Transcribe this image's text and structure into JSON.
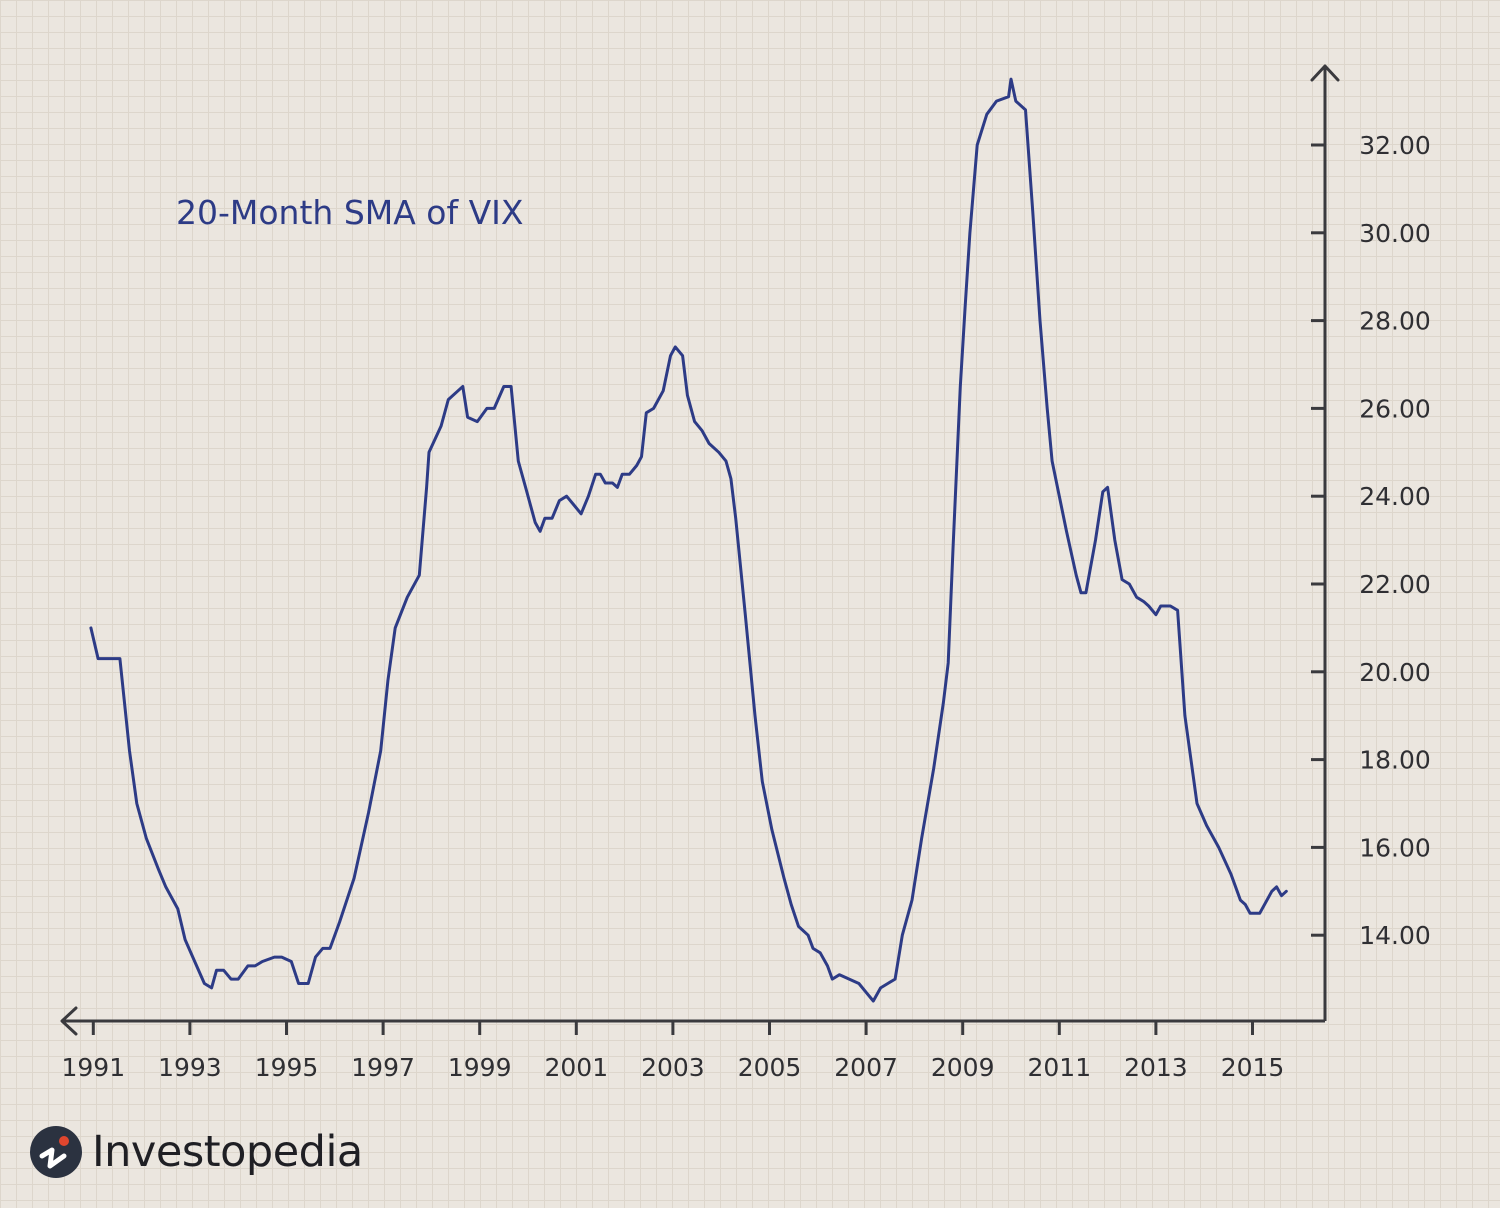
{
  "brand": {
    "name": "Investopedia"
  },
  "colors": {
    "line": "#2d3b86",
    "axis": "#3a3a3e",
    "background": "#ebe6df",
    "logo_accent": "#e0462e"
  },
  "chart_data": {
    "type": "line",
    "title": "20-Month SMA of VIX",
    "xlabel": "",
    "ylabel": "",
    "xlim": [
      1990.0,
      2015.5
    ],
    "ylim": [
      12.0,
      33.8
    ],
    "y_axis_position": "right",
    "grid": true,
    "x_ticks": [
      1991,
      1993,
      1995,
      1997,
      1999,
      2001,
      2003,
      2005,
      2007,
      2009,
      2011,
      2013,
      2015
    ],
    "x_tick_labels": [
      "1991",
      "1993",
      "1995",
      "1997",
      "1999",
      "2001",
      "2003",
      "2005",
      "2007",
      "2009",
      "2011",
      "2013",
      "2015"
    ],
    "y_ticks": [
      14,
      16,
      18,
      20,
      22,
      24,
      26,
      28,
      30,
      32
    ],
    "y_tick_labels": [
      "14.00",
      "16.00",
      "18.00",
      "20.00",
      "22.00",
      "24.00",
      "26.00",
      "28.00",
      "30.00",
      "32.00"
    ],
    "series": [
      {
        "values": [
          [
            1990.95,
            21.0
          ],
          [
            1991.1,
            20.3
          ],
          [
            1991.55,
            20.3
          ],
          [
            1991.75,
            18.2
          ],
          [
            1991.9,
            17.0
          ],
          [
            1992.1,
            16.2
          ],
          [
            1992.35,
            15.5
          ],
          [
            1992.5,
            15.1
          ],
          [
            1992.75,
            14.6
          ],
          [
            1992.9,
            13.9
          ],
          [
            1993.1,
            13.4
          ],
          [
            1993.3,
            12.9
          ],
          [
            1993.45,
            12.8
          ],
          [
            1993.55,
            13.2
          ],
          [
            1993.7,
            13.2
          ],
          [
            1993.85,
            13.0
          ],
          [
            1994.0,
            13.0
          ],
          [
            1994.2,
            13.3
          ],
          [
            1994.35,
            13.3
          ],
          [
            1994.5,
            13.4
          ],
          [
            1994.75,
            13.5
          ],
          [
            1994.9,
            13.5
          ],
          [
            1995.1,
            13.4
          ],
          [
            1995.25,
            12.9
          ],
          [
            1995.45,
            12.9
          ],
          [
            1995.6,
            13.5
          ],
          [
            1995.75,
            13.7
          ],
          [
            1995.9,
            13.7
          ],
          [
            1996.1,
            14.3
          ],
          [
            1996.4,
            15.3
          ],
          [
            1996.7,
            16.8
          ],
          [
            1996.95,
            18.2
          ],
          [
            1997.1,
            19.8
          ],
          [
            1997.25,
            21.0
          ],
          [
            1997.5,
            21.7
          ],
          [
            1997.75,
            22.2
          ],
          [
            1997.9,
            24.2
          ],
          [
            1997.95,
            25.0
          ],
          [
            1998.2,
            25.6
          ],
          [
            1998.35,
            26.2
          ],
          [
            1998.55,
            26.4
          ],
          [
            1998.65,
            26.5
          ],
          [
            1998.75,
            25.8
          ],
          [
            1998.95,
            25.7
          ],
          [
            1999.15,
            26.0
          ],
          [
            1999.3,
            26.0
          ],
          [
            1999.5,
            26.5
          ],
          [
            1999.65,
            26.5
          ],
          [
            1999.8,
            24.8
          ],
          [
            1999.95,
            24.2
          ],
          [
            2000.15,
            23.4
          ],
          [
            2000.25,
            23.2
          ],
          [
            2000.35,
            23.5
          ],
          [
            2000.5,
            23.5
          ],
          [
            2000.65,
            23.9
          ],
          [
            2000.8,
            24.0
          ],
          [
            2000.95,
            23.8
          ],
          [
            2001.1,
            23.6
          ],
          [
            2001.25,
            24.0
          ],
          [
            2001.4,
            24.5
          ],
          [
            2001.5,
            24.5
          ],
          [
            2001.6,
            24.3
          ],
          [
            2001.75,
            24.3
          ],
          [
            2001.85,
            24.2
          ],
          [
            2001.95,
            24.5
          ],
          [
            2002.1,
            24.5
          ],
          [
            2002.25,
            24.7
          ],
          [
            2002.35,
            24.9
          ],
          [
            2002.45,
            25.9
          ],
          [
            2002.6,
            26.0
          ],
          [
            2002.8,
            26.4
          ],
          [
            2002.95,
            27.2
          ],
          [
            2003.05,
            27.4
          ],
          [
            2003.2,
            27.2
          ],
          [
            2003.3,
            26.3
          ],
          [
            2003.45,
            25.7
          ],
          [
            2003.6,
            25.5
          ],
          [
            2003.75,
            25.2
          ],
          [
            2003.95,
            25.0
          ],
          [
            2004.1,
            24.8
          ],
          [
            2004.2,
            24.4
          ],
          [
            2004.3,
            23.5
          ],
          [
            2004.5,
            21.3
          ],
          [
            2004.7,
            19.0
          ],
          [
            2004.85,
            17.5
          ],
          [
            2005.05,
            16.4
          ],
          [
            2005.3,
            15.3
          ],
          [
            2005.45,
            14.7
          ],
          [
            2005.6,
            14.2
          ],
          [
            2005.8,
            14.0
          ],
          [
            2005.9,
            13.7
          ],
          [
            2006.05,
            13.6
          ],
          [
            2006.2,
            13.3
          ],
          [
            2006.3,
            13.0
          ],
          [
            2006.45,
            13.1
          ],
          [
            2006.65,
            13.0
          ],
          [
            2006.85,
            12.9
          ],
          [
            2007.0,
            12.7
          ],
          [
            2007.15,
            12.5
          ],
          [
            2007.3,
            12.8
          ],
          [
            2007.45,
            12.9
          ],
          [
            2007.6,
            13.0
          ],
          [
            2007.75,
            14.0
          ],
          [
            2007.95,
            14.8
          ],
          [
            2008.15,
            16.2
          ],
          [
            2008.4,
            17.8
          ],
          [
            2008.6,
            19.3
          ],
          [
            2008.7,
            20.2
          ],
          [
            2008.8,
            22.8
          ],
          [
            2008.95,
            26.5
          ],
          [
            2009.05,
            28.3
          ],
          [
            2009.15,
            30.0
          ],
          [
            2009.3,
            32.0
          ],
          [
            2009.5,
            32.7
          ],
          [
            2009.7,
            33.0
          ],
          [
            2009.95,
            33.1
          ],
          [
            2010.0,
            33.5
          ],
          [
            2010.1,
            33.0
          ],
          [
            2010.3,
            32.8
          ],
          [
            2010.45,
            30.5
          ],
          [
            2010.6,
            28.0
          ],
          [
            2010.75,
            26.0
          ],
          [
            2010.85,
            24.8
          ],
          [
            2011.0,
            24.0
          ],
          [
            2011.15,
            23.2
          ],
          [
            2011.35,
            22.2
          ],
          [
            2011.45,
            21.8
          ],
          [
            2011.55,
            21.8
          ],
          [
            2011.75,
            23.0
          ],
          [
            2011.9,
            24.1
          ],
          [
            2012.0,
            24.2
          ],
          [
            2012.15,
            23.0
          ],
          [
            2012.3,
            22.1
          ],
          [
            2012.45,
            22.0
          ],
          [
            2012.6,
            21.7
          ],
          [
            2012.75,
            21.6
          ],
          [
            2012.85,
            21.5
          ],
          [
            2013.0,
            21.3
          ],
          [
            2013.1,
            21.5
          ],
          [
            2013.3,
            21.5
          ],
          [
            2013.45,
            21.4
          ],
          [
            2013.6,
            19.0
          ],
          [
            2013.85,
            17.0
          ],
          [
            2014.05,
            16.5
          ],
          [
            2014.3,
            16.0
          ],
          [
            2014.55,
            15.4
          ],
          [
            2014.75,
            14.8
          ],
          [
            2014.85,
            14.7
          ],
          [
            2014.95,
            14.5
          ],
          [
            2015.15,
            14.5
          ],
          [
            2015.4,
            15.0
          ],
          [
            2015.5,
            15.1
          ],
          [
            2015.6,
            14.9
          ],
          [
            2015.7,
            15.0
          ]
        ]
      }
    ]
  }
}
